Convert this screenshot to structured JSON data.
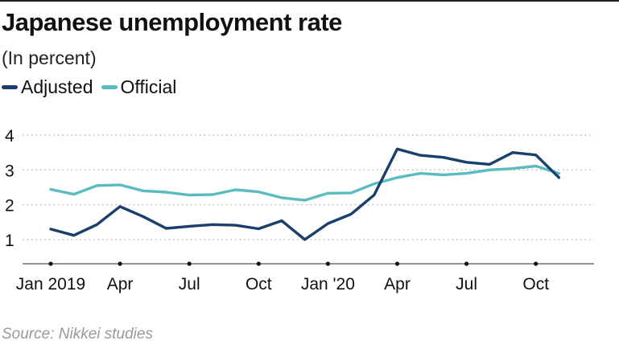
{
  "chart_data": {
    "type": "line",
    "title": "Japanese unemployment rate",
    "subtitle": "(In percent)",
    "source": "Source: Nikkei studies",
    "xlabel": "",
    "ylabel": "",
    "ylim": [
      0.3,
      4.3
    ],
    "y_ticks": [
      1,
      2,
      3,
      4
    ],
    "grid": true,
    "x": [
      "2019-01",
      "2019-02",
      "2019-03",
      "2019-04",
      "2019-05",
      "2019-06",
      "2019-07",
      "2019-08",
      "2019-09",
      "2019-10",
      "2019-11",
      "2019-12",
      "2020-01",
      "2020-02",
      "2020-03",
      "2020-04",
      "2020-05",
      "2020-06",
      "2020-07",
      "2020-08",
      "2020-09",
      "2020-10",
      "2020-11"
    ],
    "x_ticks": [
      {
        "index": 0,
        "label": "Jan 2019"
      },
      {
        "index": 3,
        "label": "Apr"
      },
      {
        "index": 6,
        "label": "Jul"
      },
      {
        "index": 9,
        "label": "Oct"
      },
      {
        "index": 12,
        "label": "Jan '20"
      },
      {
        "index": 15,
        "label": "Apr"
      },
      {
        "index": 18,
        "label": "Jul"
      },
      {
        "index": 21,
        "label": "Oct"
      }
    ],
    "series": [
      {
        "name": "Adjusted",
        "color": "#1b3f6a",
        "values": [
          1.3,
          1.12,
          1.43,
          1.95,
          1.66,
          1.32,
          1.38,
          1.43,
          1.41,
          1.31,
          1.54,
          1.0,
          1.46,
          1.73,
          2.28,
          3.6,
          3.42,
          3.36,
          3.22,
          3.16,
          3.5,
          3.43,
          2.78
        ]
      },
      {
        "name": "Official",
        "color": "#5bbcbf",
        "values": [
          2.44,
          2.3,
          2.55,
          2.57,
          2.4,
          2.36,
          2.28,
          2.29,
          2.43,
          2.37,
          2.2,
          2.13,
          2.33,
          2.34,
          2.6,
          2.78,
          2.9,
          2.86,
          2.9,
          3.0,
          3.04,
          3.11,
          2.9
        ]
      }
    ]
  }
}
